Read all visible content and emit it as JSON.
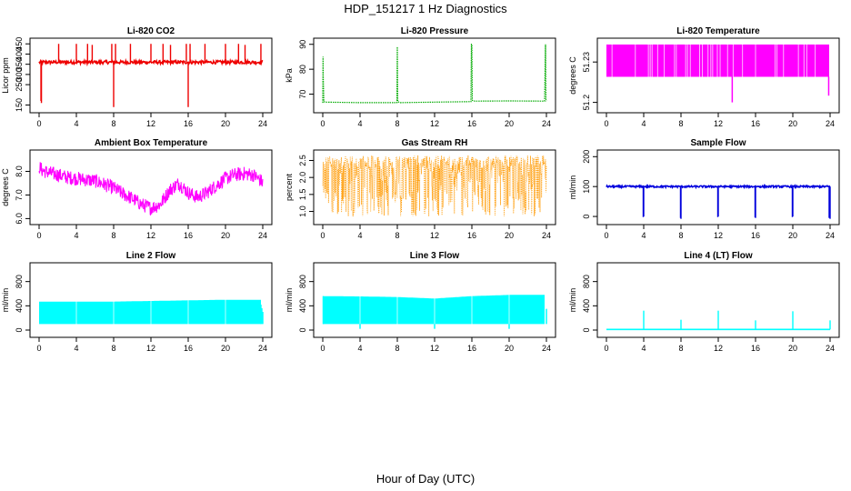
{
  "figure": {
    "title": "HDP_151217  1 Hz Diagnostics",
    "xlabel": "Hour of Day (UTC)"
  },
  "chart_data": [
    {
      "id": "co2",
      "type": "line",
      "title": "Li-820 CO2",
      "ylabel": "Licor ppm",
      "color": "#ee0000",
      "xlim": [
        0,
        24
      ],
      "xticks": [
        0,
        4,
        8,
        12,
        16,
        20,
        24
      ],
      "ylim": [
        130,
        460
      ],
      "yticks": [
        150,
        250,
        300,
        350,
        400,
        450
      ],
      "render": "spiky",
      "base": 360,
      "noise": 8,
      "band": 0,
      "spikes": [
        [
          0.2,
          170
        ],
        [
          0.25,
          160
        ],
        [
          2.1,
          450
        ],
        [
          4,
          450
        ],
        [
          5.2,
          450
        ],
        [
          5.7,
          445
        ],
        [
          7.8,
          450
        ],
        [
          8,
          140
        ],
        [
          8.2,
          450
        ],
        [
          9.8,
          450
        ],
        [
          12,
          450
        ],
        [
          13.3,
          450
        ],
        [
          14.1,
          445
        ],
        [
          15.8,
          450
        ],
        [
          16,
          140
        ],
        [
          16.2,
          450
        ],
        [
          17.8,
          450
        ],
        [
          20,
          450
        ],
        [
          21.4,
          450
        ],
        [
          22.1,
          445
        ],
        [
          23.8,
          450
        ]
      ]
    },
    {
      "id": "pressure",
      "type": "line",
      "title": "Li-820 Pressure",
      "ylabel": "kPa",
      "color": "#00aa00",
      "xlim": [
        0,
        24
      ],
      "xticks": [
        0,
        4,
        8,
        12,
        16,
        20,
        24
      ],
      "ylim": [
        64,
        91
      ],
      "yticks": [
        70,
        80,
        90
      ],
      "render": "line",
      "x": [
        0,
        0.03,
        0.06,
        0.12,
        0.3,
        4,
        7.95,
        8.0,
        8.05,
        8.3,
        12,
        15.9,
        15.95,
        16.0,
        16.05,
        16.3,
        20,
        23.8,
        23.9,
        23.95,
        24
      ],
      "values": [
        66.5,
        85,
        76,
        67,
        66.8,
        66.6,
        66.6,
        89,
        67,
        66.6,
        66.8,
        67,
        90,
        90,
        67.5,
        67.2,
        67.3,
        67.2,
        90,
        67.5,
        67.2
      ]
    },
    {
      "id": "li_temp",
      "type": "area",
      "title": "Li-820 Temperature",
      "ylabel": "degrees C",
      "color": "#ff00ff",
      "xlim": [
        0,
        24
      ],
      "xticks": [
        0,
        4,
        8,
        12,
        16,
        20,
        24
      ],
      "ylim": [
        51.195,
        51.245
      ],
      "yticks": [
        51.2,
        51.23
      ],
      "render": "block",
      "blockLow": 51.219,
      "blockHigh": 51.243,
      "gaps": [
        0.6,
        3.1,
        4.5,
        4.7,
        4.9,
        5.5,
        6.2,
        7.3,
        7.5,
        8.5,
        8.7,
        9.0,
        10.0,
        10.3,
        10.9,
        11.2,
        11.4,
        11.9,
        12.2,
        13.0,
        13.6,
        14.6,
        16.0,
        18.1,
        18.3,
        19.0,
        20.6,
        21.2,
        21.5,
        22.4
      ],
      "spikes": [
        [
          13.5,
          51.2
        ],
        [
          23.85,
          51.205
        ]
      ]
    },
    {
      "id": "ambient",
      "type": "line",
      "title": "Ambient Box Temperature",
      "ylabel": "degrees C",
      "color": "#ff00ff",
      "xlim": [
        0,
        24
      ],
      "xticks": [
        0,
        4,
        8,
        12,
        16,
        20,
        24
      ],
      "ylim": [
        5.9,
        8.75
      ],
      "yticks": [
        6.0,
        7.0,
        8.0
      ],
      "render": "band",
      "noise": 0.0,
      "band": 0.3,
      "x": [
        0,
        0.3,
        1,
        2,
        3,
        4,
        5,
        6,
        7,
        8,
        9,
        10,
        11,
        12,
        13,
        14,
        15,
        16,
        17,
        18,
        19,
        20,
        21,
        22,
        23,
        23.8,
        24
      ],
      "values": [
        8.2,
        8.05,
        7.95,
        7.85,
        7.75,
        7.7,
        7.65,
        7.6,
        7.45,
        7.3,
        7.05,
        6.85,
        6.6,
        6.45,
        6.6,
        7.2,
        7.5,
        7.1,
        6.9,
        7.1,
        7.4,
        7.7,
        7.85,
        7.9,
        7.85,
        7.6,
        7.5
      ]
    },
    {
      "id": "rh",
      "type": "line",
      "title": "Gas Stream RH",
      "ylabel": "percent",
      "color": "#ff9900",
      "xlim": [
        0,
        24
      ],
      "xticks": [
        0,
        4,
        8,
        12,
        16,
        20,
        24
      ],
      "ylim": [
        0.72,
        2.7
      ],
      "yticks": [
        1.0,
        1.5,
        2.0,
        2.5
      ],
      "render": "dotted",
      "top": 2.45,
      "low": 0.85,
      "noise": 0.2
    },
    {
      "id": "sample_flow",
      "type": "line",
      "title": "Sample Flow",
      "ylabel": "ml/min",
      "color": "#0000dd",
      "xlim": [
        0,
        24
      ],
      "xticks": [
        0,
        4,
        8,
        12,
        16,
        20,
        24
      ],
      "ylim": [
        -15,
        210
      ],
      "yticks": [
        0,
        100,
        200
      ],
      "render": "spiky",
      "base": 100,
      "noise": 3,
      "band": 0,
      "spikes": [
        [
          3.95,
          -2
        ],
        [
          4.0,
          0
        ],
        [
          7.95,
          -5
        ],
        [
          8.0,
          -8
        ],
        [
          11.95,
          -2
        ],
        [
          12.0,
          0
        ],
        [
          15.95,
          -3
        ],
        [
          16.0,
          -5
        ],
        [
          19.95,
          -2
        ],
        [
          20.0,
          0
        ],
        [
          23.9,
          -5
        ],
        [
          24.0,
          -8
        ]
      ]
    },
    {
      "id": "line2",
      "type": "area",
      "title": "Line 2 Flow",
      "ylabel": "ml/min",
      "color": "#00ffff",
      "xlim": [
        0,
        24
      ],
      "xticks": [
        0,
        4,
        8,
        12,
        16,
        20,
        24
      ],
      "ylim": [
        -60,
        1050
      ],
      "yticks": [
        0,
        400,
        800
      ],
      "render": "block",
      "blockLow": 100,
      "blockHighX": [
        0,
        4,
        8,
        12,
        16,
        20,
        23.8
      ],
      "blockHighY": [
        470,
        470,
        470,
        480,
        490,
        500,
        500
      ],
      "gaps": [
        4,
        8,
        12,
        16,
        20
      ],
      "spikes": [
        [
          23.8,
          420
        ],
        [
          23.9,
          360
        ],
        [
          24,
          300
        ]
      ]
    },
    {
      "id": "line3",
      "type": "area",
      "title": "Line 3 Flow",
      "ylabel": "ml/min",
      "color": "#00ffff",
      "xlim": [
        0,
        24
      ],
      "xticks": [
        0,
        4,
        8,
        12,
        16,
        20,
        24
      ],
      "ylim": [
        -60,
        1050
      ],
      "yticks": [
        0,
        400,
        800
      ],
      "render": "block",
      "blockLow": 100,
      "blockHighX": [
        0,
        4,
        8,
        12,
        16,
        20,
        23.8
      ],
      "blockHighY": [
        560,
        555,
        545,
        520,
        560,
        580,
        580
      ],
      "gaps": [
        4,
        8,
        12,
        16,
        20
      ],
      "spikes": [
        [
          0.05,
          560
        ],
        [
          4,
          20
        ],
        [
          12,
          20
        ],
        [
          20,
          20
        ],
        [
          24,
          350
        ]
      ]
    },
    {
      "id": "line4",
      "type": "line",
      "title": "Line 4 (LT) Flow",
      "ylabel": "ml/min",
      "color": "#00ffff",
      "xlim": [
        0,
        24
      ],
      "xticks": [
        0,
        4,
        8,
        12,
        16,
        20,
        24
      ],
      "ylim": [
        -60,
        1050
      ],
      "yticks": [
        0,
        400,
        800
      ],
      "render": "spiky",
      "base": 10,
      "noise": 0,
      "band": 0,
      "spikes": [
        [
          4,
          320
        ],
        [
          8,
          170
        ],
        [
          12,
          320
        ],
        [
          16,
          160
        ],
        [
          20,
          310
        ],
        [
          24,
          160
        ]
      ]
    }
  ]
}
